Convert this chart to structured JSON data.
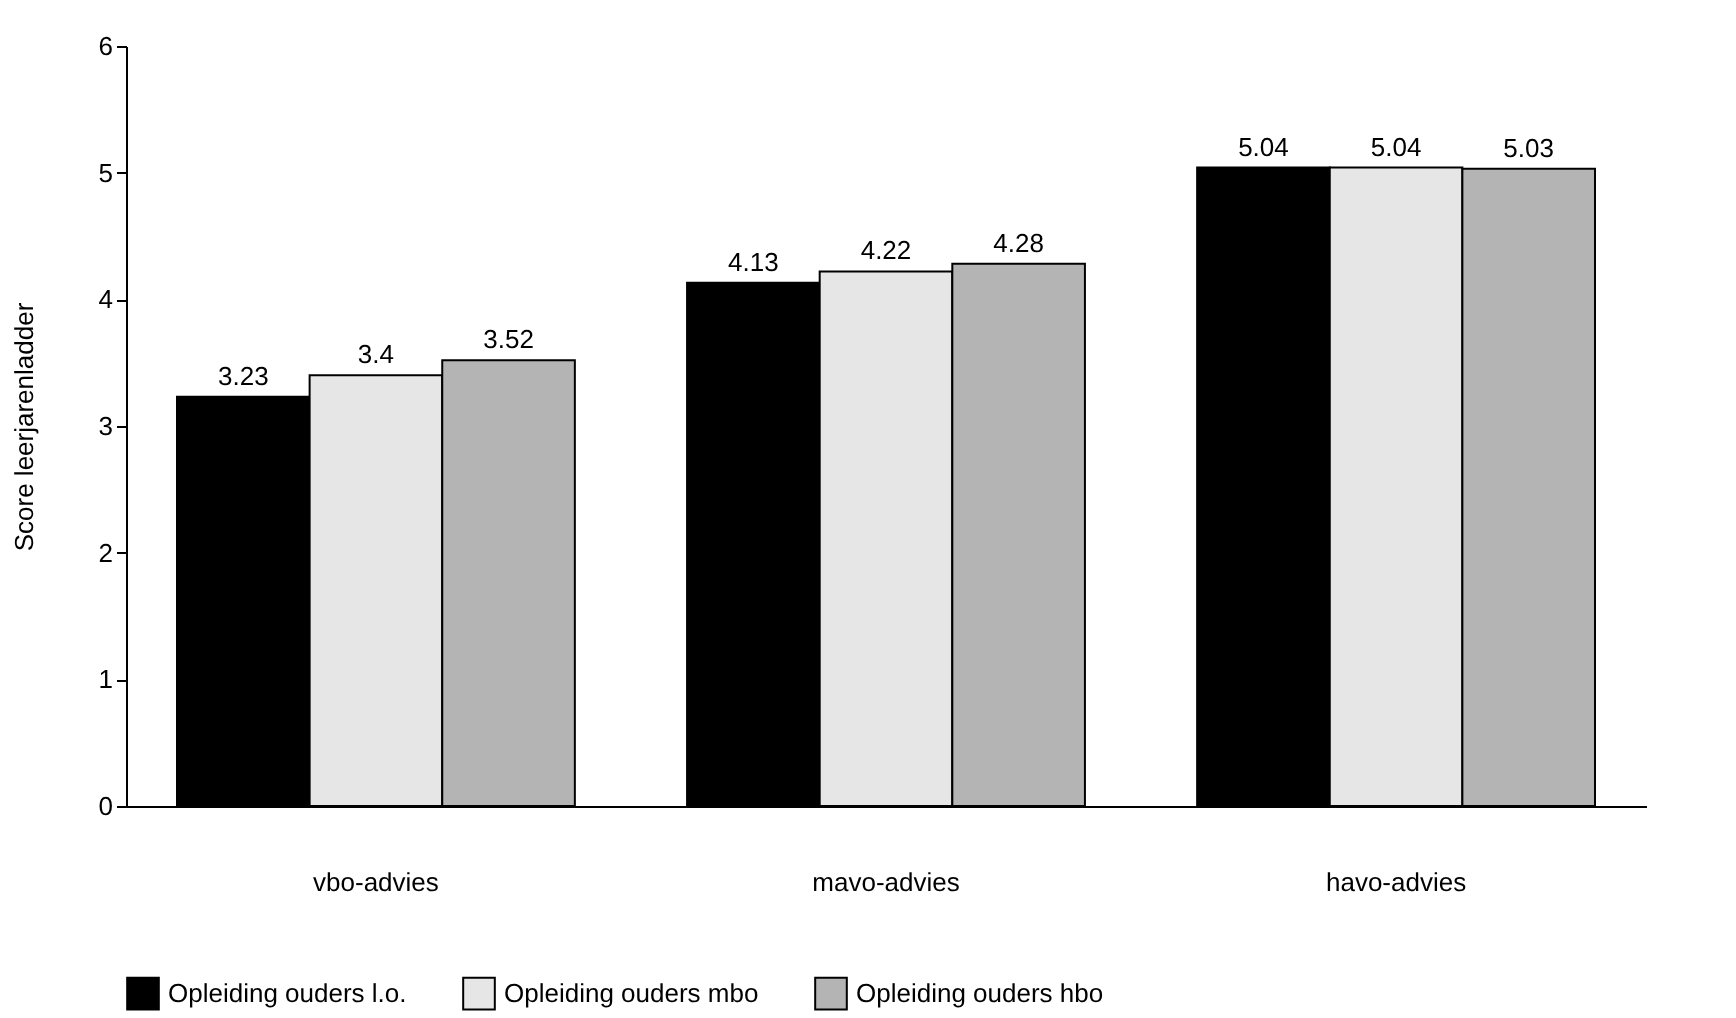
{
  "chart_data": {
    "type": "bar",
    "ylabel": "Score leerjarenladder",
    "categories": [
      "vbo-advies",
      "mavo-advies",
      "havo-advies"
    ],
    "series": [
      {
        "name": "Opleiding ouders l.o.",
        "color": "#000000",
        "values": [
          3.23,
          4.13,
          5.04
        ]
      },
      {
        "name": "Opleiding ouders mbo",
        "color": "#e6e6e6",
        "values": [
          3.4,
          4.22,
          5.04
        ]
      },
      {
        "name": "Opleiding ouders hbo",
        "color": "#b4b4b4",
        "values": [
          3.52,
          4.28,
          5.03
        ]
      }
    ],
    "ylim": [
      0,
      6
    ],
    "yticks": [
      0,
      1,
      2,
      3,
      4,
      5,
      6
    ],
    "grid": false,
    "legend": "bottom",
    "data_labels": true
  }
}
